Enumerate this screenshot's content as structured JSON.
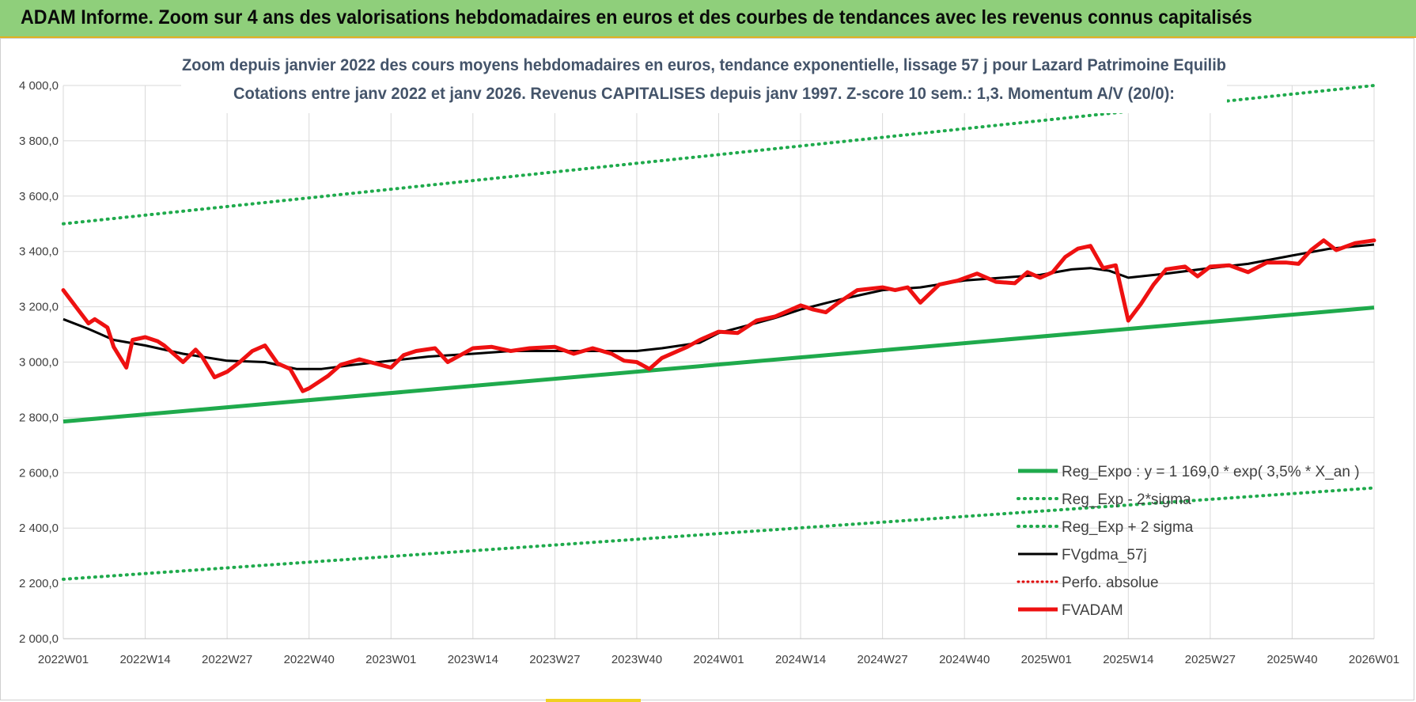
{
  "header": {
    "title": "ADAM Informe. Zoom sur 4 ans des valorisations hebdomadaires en euros et des courbes de tendances avec les revenus connus capitalisés"
  },
  "colors": {
    "banner": "#8fcf7b",
    "reg_expo": "#1faa4c",
    "sigma": "#1faa4c",
    "fvgdma": "#000000",
    "perfo": "#e00000",
    "fvadam": "#ee1111"
  },
  "chart_data": {
    "type": "line",
    "subtitle_line1": "Zoom depuis janvier 2022 des cours moyens hebdomadaires en euros, tendance exponentielle, lissage 57 j pour Lazard Patrimoine Equilib",
    "subtitle_line2": "Cotations entre janv 2022 et janv 2026. Revenus CAPITALISES depuis janv 1997. Z-score 10 sem.: 1,3. Momentum A/V (20/0):",
    "ylim": [
      2000,
      4000
    ],
    "yticks": [
      "4 000,0",
      "3 800,0",
      "3 600,0",
      "3 400,0",
      "3 200,0",
      "3 000,0",
      "2 800,0",
      "2 600,0",
      "2 400,0",
      "2 200,0",
      "2 000,0"
    ],
    "ytick_values": [
      4000,
      3800,
      3600,
      3400,
      3200,
      3000,
      2800,
      2600,
      2400,
      2200,
      2000
    ],
    "xticks": [
      "2022W01",
      "2022W14",
      "2022W27",
      "2022W40",
      "2023W01",
      "2023W14",
      "2023W27",
      "2023W40",
      "2024W01",
      "2024W14",
      "2024W27",
      "2024W40",
      "2025W01",
      "2025W14",
      "2025W27",
      "2025W40",
      "2026W01"
    ],
    "grid": true,
    "legend_position": "bottom-right",
    "series": [
      {
        "name": "Reg_Expo : y = 1 169,0 * exp( 3,5% *  X_an )",
        "style": "solid-thick",
        "x": [
          "2022W01",
          "2026W01"
        ],
        "values": [
          2785,
          3197
        ]
      },
      {
        "name": "Reg_Exp - 2*sigma",
        "style": "dotted",
        "x": [
          "2022W01",
          "2026W01"
        ],
        "values": [
          2215,
          2545
        ]
      },
      {
        "name": "Reg_Exp + 2 sigma",
        "style": "dotted",
        "x": [
          "2022W01",
          "2026W01"
        ],
        "values": [
          3500,
          4000
        ]
      },
      {
        "name": "FVgdma_57j",
        "style": "solid",
        "x": [
          "2022W01",
          "2022W05",
          "2022W09",
          "2022W14",
          "2022W20",
          "2022W27",
          "2022W33",
          "2022W38",
          "2022W42",
          "2022W47",
          "2023W01",
          "2023W07",
          "2023W14",
          "2023W20",
          "2023W27",
          "2023W33",
          "2023W40",
          "2023W44",
          "2023W50",
          "2024W01",
          "2024W06",
          "2024W10",
          "2024W14",
          "2024W20",
          "2024W27",
          "2024W33",
          "2024W40",
          "2024W46",
          "2024W52",
          "2025W05",
          "2025W08",
          "2025W11",
          "2025W14",
          "2025W20",
          "2025W27",
          "2025W33",
          "2025W40",
          "2025W46",
          "2026W01"
        ],
        "values": [
          3155,
          3120,
          3080,
          3060,
          3030,
          3005,
          3000,
          2975,
          2975,
          2990,
          3005,
          3020,
          3030,
          3040,
          3040,
          3040,
          3040,
          3050,
          3070,
          3105,
          3135,
          3160,
          3190,
          3225,
          3260,
          3270,
          3295,
          3305,
          3315,
          3335,
          3340,
          3330,
          3305,
          3320,
          3340,
          3355,
          3385,
          3410,
          3425
        ]
      },
      {
        "name": "Perfo. absolue",
        "style": "dotted-red",
        "x": [],
        "values": []
      },
      {
        "name": "FVADAM",
        "style": "solid-thick",
        "x": [
          "2022W01",
          "2022W03",
          "2022W05",
          "2022W06",
          "2022W08",
          "2022W09",
          "2022W11",
          "2022W12",
          "2022W14",
          "2022W16",
          "2022W17",
          "2022W20",
          "2022W22",
          "2022W23",
          "2022W25",
          "2022W27",
          "2022W29",
          "2022W31",
          "2022W33",
          "2022W35",
          "2022W37",
          "2022W38",
          "2022W39",
          "2022W40",
          "2022W43",
          "2022W45",
          "2022W48",
          "2023W01",
          "2023W03",
          "2023W05",
          "2023W08",
          "2023W10",
          "2023W12",
          "2023W14",
          "2023W17",
          "2023W20",
          "2023W23",
          "2023W27",
          "2023W30",
          "2023W33",
          "2023W36",
          "2023W38",
          "2023W40",
          "2023W42",
          "2023W44",
          "2023W48",
          "2023W50",
          "2024W01",
          "2024W04",
          "2024W07",
          "2024W10",
          "2024W14",
          "2024W16",
          "2024W18",
          "2024W20",
          "2024W23",
          "2024W27",
          "2024W29",
          "2024W31",
          "2024W33",
          "2024W36",
          "2024W39",
          "2024W42",
          "2024W45",
          "2024W48",
          "2024W50",
          "2024W52",
          "2025W02",
          "2025W04",
          "2025W06",
          "2025W08",
          "2025W10",
          "2025W12",
          "2025W14",
          "2025W16",
          "2025W18",
          "2025W20",
          "2025W23",
          "2025W25",
          "2025W27",
          "2025W30",
          "2025W33",
          "2025W36",
          "2025W39",
          "2025W41",
          "2025W43",
          "2025W45",
          "2025W47",
          "2025W50",
          "2026W01"
        ],
        "values": [
          3260,
          3200,
          3140,
          3155,
          3125,
          3055,
          2980,
          3080,
          3090,
          3075,
          3060,
          3000,
          3045,
          3020,
          2945,
          2965,
          3000,
          3040,
          3060,
          2995,
          2975,
          2935,
          2895,
          2905,
          2950,
          2990,
          3010,
          2980,
          3025,
          3040,
          3050,
          3000,
          3025,
          3050,
          3055,
          3040,
          3050,
          3055,
          3030,
          3050,
          3030,
          3005,
          3000,
          2975,
          3015,
          3055,
          3080,
          3110,
          3105,
          3150,
          3165,
          3205,
          3190,
          3180,
          3215,
          3260,
          3270,
          3260,
          3270,
          3215,
          3280,
          3295,
          3320,
          3290,
          3285,
          3325,
          3305,
          3325,
          3380,
          3410,
          3420,
          3340,
          3350,
          3150,
          3210,
          3280,
          3335,
          3345,
          3310,
          3345,
          3350,
          3325,
          3360,
          3360,
          3355,
          3405,
          3440,
          3405,
          3430,
          3440
        ]
      }
    ]
  }
}
